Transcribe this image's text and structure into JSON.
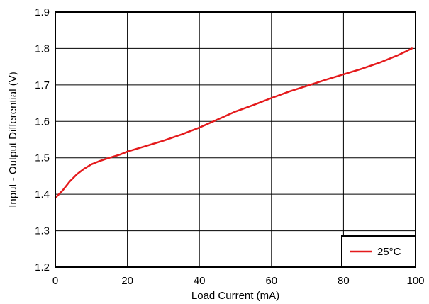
{
  "chart_data": {
    "type": "line",
    "title": "",
    "xlabel": "Load Current (mA)",
    "ylabel": "Input - Output Differential (V)",
    "xlim": [
      0,
      100
    ],
    "ylim": [
      1.2,
      1.9
    ],
    "xticks": [
      0,
      20,
      40,
      60,
      80,
      100
    ],
    "yticks": [
      1.2,
      1.3,
      1.4,
      1.5,
      1.6,
      1.7,
      1.8,
      1.9
    ],
    "xtick_labels": [
      "0",
      "20",
      "40",
      "60",
      "80",
      "100"
    ],
    "ytick_labels": [
      "1.2",
      "1.3",
      "1.4",
      "1.5",
      "1.6",
      "1.7",
      "1.8",
      "1.9"
    ],
    "grid": true,
    "legend_position": "bottom-right",
    "series": [
      {
        "name": "25°C",
        "color": "#e41a1c",
        "x": [
          0,
          2,
          4,
          6,
          8,
          10,
          12,
          14,
          16,
          18,
          20,
          25,
          30,
          35,
          40,
          45,
          50,
          55,
          60,
          65,
          70,
          75,
          80,
          85,
          90,
          95,
          99
        ],
        "y": [
          1.39,
          1.41,
          1.435,
          1.455,
          1.47,
          1.482,
          1.49,
          1.497,
          1.503,
          1.509,
          1.517,
          1.532,
          1.547,
          1.564,
          1.583,
          1.605,
          1.627,
          1.645,
          1.664,
          1.682,
          1.698,
          1.714,
          1.729,
          1.744,
          1.761,
          1.781,
          1.8
        ]
      }
    ]
  }
}
